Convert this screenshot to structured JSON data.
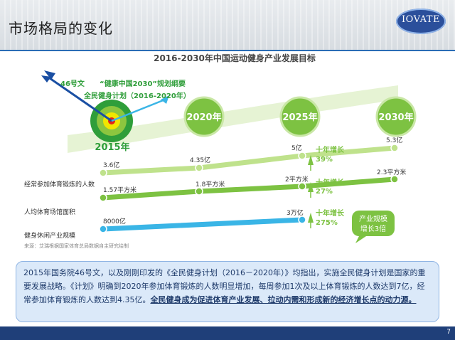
{
  "slide": {
    "title": "市场格局的变化",
    "logo": "IOVATE",
    "page_number": "7"
  },
  "diagram": {
    "title": "2016-2030年中国运动健身产业发展目标",
    "callout_lines": [
      "46号文",
      "“健康中国2030”规划纲要",
      "全民健身计划（2016-2020年）"
    ],
    "milestones": [
      "2015年",
      "2020年",
      "2025年",
      "2030年"
    ],
    "rows": [
      {
        "label": "经常参加体育锻炼的人数",
        "values": [
          "3.6亿",
          "4.35亿",
          "5亿",
          "5.3亿"
        ]
      },
      {
        "label": "人均体育场馆面积",
        "values": [
          "1.57平方米",
          "1.8平方米",
          "2平方米",
          "2.3平方米"
        ]
      },
      {
        "label": "健身休闲产业规模",
        "values": [
          "8000亿",
          "",
          "3万亿",
          ""
        ]
      }
    ],
    "growth": [
      {
        "title": "十年增长",
        "value": "39%"
      },
      {
        "title": "十年增长",
        "value": "27%"
      },
      {
        "title": "十年增长",
        "value": "275%"
      }
    ],
    "badge_lines": [
      "产业规模",
      "增长3倍"
    ],
    "source": "来源：艾瑞根据国家体育总局数据自主研究绘制"
  },
  "summary": {
    "text": "2015年国务院46号文，以及刚刚印发的《全民健身计划（2016－2020年）》均指出，实施全民健身计划是国家的重要发展战略。《计划》明确到2020年参加体育锻炼的人数明显增加，每周参加1次及以上体育锻炼的人数达到7亿，经常参加体育锻炼的人数达到4.35亿。",
    "emphasis": "全民健身成为促进体育产业发展、拉动内需和形成新的经济增长点的动力源。"
  },
  "colors": {
    "green": "#7dc242",
    "light_green": "#bfe28c",
    "dark_green": "#2f9e3a",
    "blue_line": "#3ab5e6",
    "header_blue": "#2a6db5",
    "footer": "#1f3f79",
    "text_box": "#dbe9f9"
  },
  "icons": [
    "dart-arrow-icon",
    "dart-arrow-icon",
    "target-icon",
    "up-arrow-icon"
  ]
}
